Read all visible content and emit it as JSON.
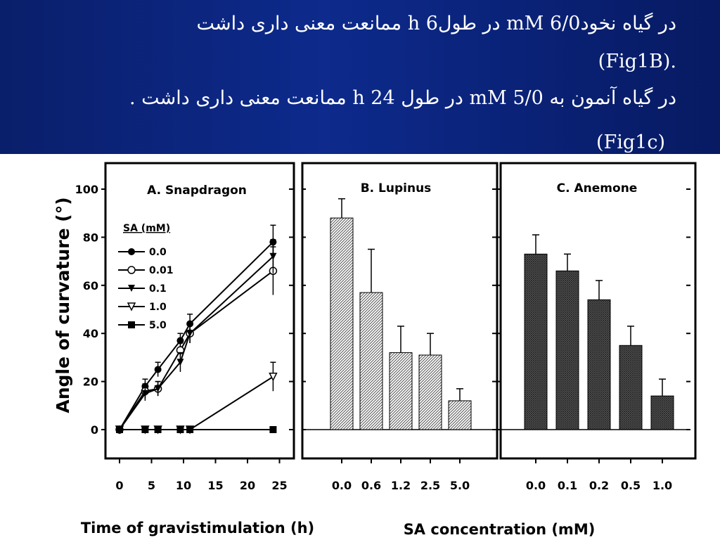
{
  "header": {
    "line1": "در گیاه نخودmM 6/0 در طولh 6   ممانعت معنی داری داشت",
    "line2": "(Fig1B).",
    "line3": "در گیاه آنمون به mM 5/0 در طول h 24 ممانعت معنی داری داشت  .",
    "line4": "(Fig1c)"
  },
  "figure": {
    "y_axis_label": "Angle of curvature (°)",
    "x_axis_label_left": "Time of gravistimulation (h)",
    "x_axis_label_right": "SA concentration (mM)",
    "legend_title": "SA (mM)"
  },
  "colors": {
    "header_bg": "#0b2480",
    "ink": "#000000"
  },
  "chart_data": [
    {
      "type": "line",
      "title": "A. Snapdragon",
      "xlabel": "Time of gravistimulation (h)",
      "ylabel": "Angle of curvature (°)",
      "xlim": [
        -2,
        26
      ],
      "ylim": [
        -10,
        105
      ],
      "xticks": [
        0,
        5,
        10,
        15,
        20,
        25
      ],
      "yticks": [
        0,
        20,
        40,
        60,
        80,
        100
      ],
      "legend": "left",
      "series": [
        {
          "name": "0.0",
          "marker": "filled-circle",
          "x": [
            0,
            4,
            6,
            9.5,
            11,
            24
          ],
          "y": [
            0,
            18,
            25,
            37,
            44,
            78
          ],
          "err": [
            0,
            3,
            3,
            3,
            4,
            7
          ]
        },
        {
          "name": "0.01",
          "marker": "open-circle",
          "x": [
            0,
            4,
            6,
            9.5,
            11,
            24
          ],
          "y": [
            0,
            16,
            17,
            33,
            40,
            66
          ],
          "err": [
            0,
            3,
            3,
            3,
            4,
            10
          ]
        },
        {
          "name": "0.1",
          "marker": "filled-triangle",
          "x": [
            0,
            4,
            6,
            9.5,
            11,
            24
          ],
          "y": [
            0,
            15,
            17,
            28,
            40,
            72
          ],
          "err": [
            0,
            3,
            3,
            4,
            4,
            7
          ]
        },
        {
          "name": "1.0",
          "marker": "open-triangle",
          "x": [
            0,
            4,
            6,
            9.5,
            11,
            24
          ],
          "y": [
            0,
            0,
            0,
            0,
            0,
            22
          ],
          "err": [
            0,
            0,
            0,
            0,
            0,
            6
          ]
        },
        {
          "name": "5.0",
          "marker": "filled-square",
          "x": [
            0,
            4,
            6,
            9.5,
            11,
            24
          ],
          "y": [
            0,
            0,
            0,
            0,
            0,
            0
          ],
          "err": [
            0,
            0,
            0,
            0,
            0,
            0
          ]
        }
      ]
    },
    {
      "type": "bar",
      "title": "B. Lupinus",
      "xlabel": "SA concentration (mM)",
      "ylim": [
        -10,
        105
      ],
      "categories": [
        "0.0",
        "0.6",
        "1.2",
        "2.5",
        "5.0"
      ],
      "values": [
        88,
        57,
        32,
        31,
        12
      ],
      "errors": [
        8,
        18,
        11,
        9,
        5
      ]
    },
    {
      "type": "bar",
      "title": "C. Anemone",
      "xlabel": "SA concentration (mM)",
      "ylim": [
        -10,
        105
      ],
      "categories": [
        "0.0",
        "0.1",
        "0.2",
        "0.5",
        "1.0"
      ],
      "values": [
        73,
        66,
        54,
        35,
        14
      ],
      "errors": [
        8,
        7,
        8,
        8,
        7
      ]
    }
  ]
}
